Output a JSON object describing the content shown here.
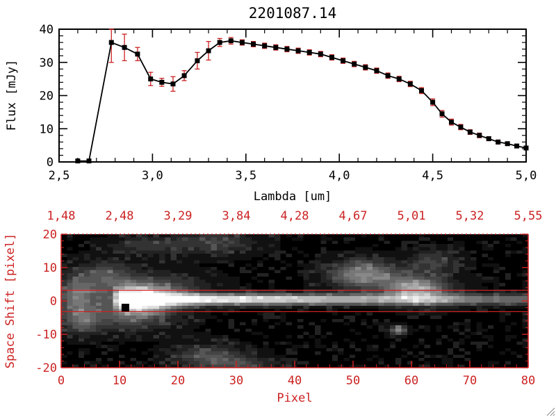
{
  "title": "2201087.14",
  "colors": {
    "axis_black": "#000000",
    "axis_red": "#cc2222",
    "error_red": "#cc2222",
    "marker_black": "#000000",
    "background": "#ffffff"
  },
  "chart_data": [
    {
      "type": "line",
      "title": "2201087.14",
      "xlabel": "Lambda [um]",
      "ylabel": "Flux [mJy]",
      "xlim": [
        2.5,
        5.0
      ],
      "ylim": [
        0,
        40
      ],
      "x_tick_labels": [
        "2,5",
        "3,0",
        "3,5",
        "4,0",
        "4,5",
        "5,0"
      ],
      "x_tick_values": [
        2.5,
        3.0,
        3.5,
        4.0,
        4.5,
        5.0
      ],
      "y_tick_labels": [
        "0",
        "10",
        "20",
        "30",
        "40"
      ],
      "y_tick_values": [
        0,
        10,
        20,
        30,
        40
      ],
      "x_minor_step": 0.1,
      "y_minor_step": 2,
      "marker": "square",
      "line_color": "#000000",
      "error_color": "#cc2222",
      "grid": false,
      "x": [
        2.6,
        2.66,
        2.78,
        2.85,
        2.92,
        2.99,
        3.05,
        3.11,
        3.17,
        3.24,
        3.3,
        3.36,
        3.42,
        3.48,
        3.54,
        3.6,
        3.66,
        3.72,
        3.78,
        3.84,
        3.9,
        3.96,
        4.02,
        4.08,
        4.14,
        4.2,
        4.26,
        4.32,
        4.38,
        4.44,
        4.5,
        4.55,
        4.6,
        4.65,
        4.7,
        4.75,
        4.8,
        4.85,
        4.9,
        4.95,
        5.0
      ],
      "y": [
        0.3,
        0.3,
        36.0,
        34.5,
        32.5,
        25.0,
        24.0,
        23.5,
        26.0,
        30.5,
        33.5,
        36.0,
        36.5,
        36.0,
        35.5,
        35.0,
        34.5,
        34.0,
        33.5,
        33.0,
        32.5,
        31.5,
        30.5,
        29.5,
        28.5,
        27.5,
        26.0,
        25.0,
        23.5,
        21.5,
        18.0,
        14.5,
        12.0,
        10.5,
        9.0,
        8.0,
        7.0,
        6.0,
        5.5,
        4.8,
        4.2
      ],
      "yerr": [
        0.2,
        0.2,
        6.0,
        4.0,
        2.0,
        2.0,
        1.2,
        2.2,
        1.5,
        2.5,
        2.8,
        1.2,
        1.0,
        0.8,
        0.8,
        0.8,
        0.8,
        0.8,
        0.8,
        0.8,
        0.8,
        0.8,
        0.8,
        0.8,
        0.8,
        0.8,
        0.8,
        0.8,
        0.8,
        0.9,
        1.0,
        1.0,
        0.9,
        0.8,
        0.7,
        0.7,
        0.6,
        0.6,
        0.5,
        0.5,
        0.5
      ]
    },
    {
      "type": "heatmap",
      "xlabel": "Pixel",
      "ylabel": "Space Shift [pixel]",
      "xlim": [
        0,
        80
      ],
      "ylim": [
        -20,
        20
      ],
      "x_tick_labels": [
        "0",
        "10",
        "20",
        "30",
        "40",
        "50",
        "60",
        "70",
        "80"
      ],
      "x_tick_values": [
        0,
        10,
        20,
        30,
        40,
        50,
        60,
        70,
        80
      ],
      "y_tick_labels": [
        "20",
        "10",
        "0",
        "-10",
        "-20"
      ],
      "y_tick_values": [
        20,
        10,
        0,
        -10,
        -20
      ],
      "top_axis_labels": [
        "1,48",
        "2,48",
        "3,29",
        "3,84",
        "4,28",
        "4,67",
        "5,01",
        "5,32",
        "5,55"
      ],
      "aperture_lines_y": [
        3.2,
        -3.2
      ],
      "marker_point": {
        "x": 11,
        "y": -2
      },
      "trace": {
        "y_center": 0.5,
        "sigma": 1.3,
        "x_start": 8,
        "peak_x": 12
      },
      "blobs": [
        {
          "x": 52,
          "y": 8,
          "sx": 4,
          "sy": 3,
          "amp": 0.5
        },
        {
          "x": 60,
          "y": 4,
          "sx": 3,
          "sy": 2.5,
          "amp": 0.38
        },
        {
          "x": 63,
          "y": 3,
          "sx": 4,
          "sy": 3,
          "amp": 0.3
        },
        {
          "x": 64,
          "y": 12,
          "sx": 3,
          "sy": 2.5,
          "amp": 0.22
        },
        {
          "x": 26,
          "y": 18,
          "sx": 5,
          "sy": 2.5,
          "amp": 0.22
        },
        {
          "x": 14,
          "y": 17,
          "sx": 4,
          "sy": 2,
          "amp": 0.18
        },
        {
          "x": 25,
          "y": -17,
          "sx": 4,
          "sy": 2.5,
          "amp": 0.28
        },
        {
          "x": 31,
          "y": -20,
          "sx": 4,
          "sy": 2,
          "amp": 0.22
        },
        {
          "x": 58,
          "y": -9,
          "sx": 1,
          "sy": 1,
          "amp": 0.5
        },
        {
          "x": 3,
          "y": -6,
          "sx": 2.5,
          "sy": 3,
          "amp": 0.3
        },
        {
          "x": 2,
          "y": 2,
          "sx": 2,
          "sy": 4,
          "amp": 0.32
        },
        {
          "x": 7,
          "y": 8,
          "sx": 3,
          "sy": 3,
          "amp": 0.25
        },
        {
          "x": 12,
          "y": -5,
          "sx": 5,
          "sy": 3,
          "amp": 0.2
        },
        {
          "x": 19,
          "y": 5,
          "sx": 5,
          "sy": 2.5,
          "amp": 0.15
        }
      ]
    }
  ]
}
